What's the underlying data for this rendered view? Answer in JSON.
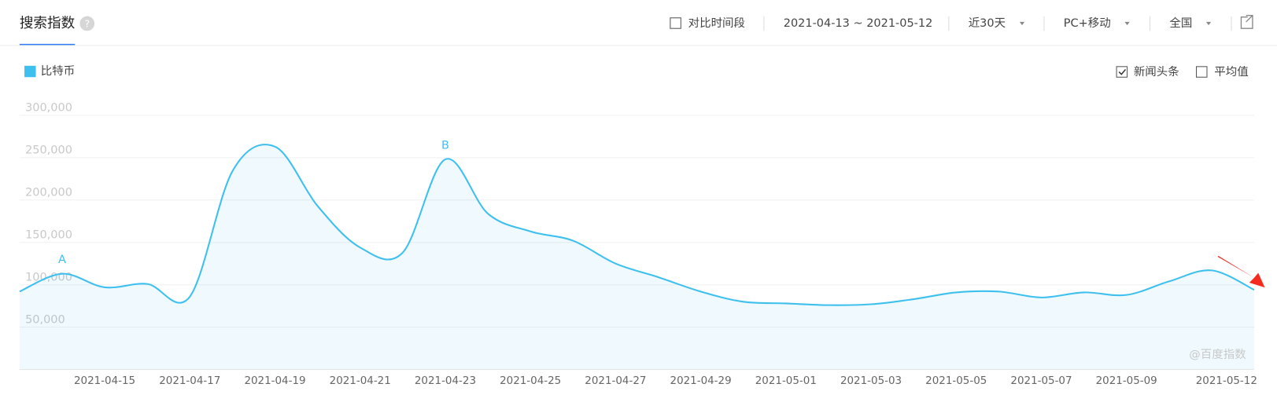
{
  "ui": {
    "title": "搜索指数",
    "help": "?",
    "compare": "对比时间段",
    "date_range": "2021-04-13 ~ 2021-05-12",
    "period": "近30天",
    "device": "PC+移动",
    "region": "全国",
    "options": [
      {
        "label": "新闻头条",
        "checked": true
      },
      {
        "label": "平均值",
        "checked": false
      }
    ],
    "watermark": "@百度指数"
  },
  "chart_data": {
    "type": "line",
    "categories": [
      null,
      null,
      "2021-04-15",
      null,
      "2021-04-17",
      null,
      "2021-04-19",
      null,
      "2021-04-21",
      null,
      "2021-04-23",
      null,
      "2021-04-25",
      null,
      "2021-04-27",
      null,
      "2021-04-29",
      null,
      "2021-05-01",
      null,
      "2021-05-03",
      null,
      "2021-05-05",
      null,
      "2021-05-07",
      null,
      "2021-05-09",
      null,
      null,
      "2021-05-12"
    ],
    "series": [
      {
        "name": "比特币",
        "color": "#3ec0ef",
        "values": [
          92000,
          113000,
          97000,
          101000,
          86000,
          234000,
          263000,
          193000,
          144000,
          138000,
          248000,
          184000,
          163000,
          152000,
          125000,
          109000,
          92000,
          80000,
          78000,
          76000,
          77000,
          83000,
          91000,
          92000,
          85000,
          91000,
          88000,
          104000,
          117000,
          94000
        ],
        "point_labels": [
          null,
          "A",
          null,
          null,
          null,
          null,
          null,
          null,
          null,
          null,
          "B",
          null,
          null,
          null,
          null,
          null,
          null,
          null,
          null,
          null,
          null,
          null,
          null,
          null,
          null,
          null,
          null,
          null,
          null,
          null
        ]
      }
    ],
    "ylim": [
      0,
      300000
    ],
    "yticks": [
      {
        "value": 50000,
        "label": "50,000"
      },
      {
        "value": 100000,
        "label": "100,000"
      },
      {
        "value": 150000,
        "label": "150,000"
      },
      {
        "value": 200000,
        "label": "200,000"
      },
      {
        "value": 250000,
        "label": "250,000"
      },
      {
        "value": 300000,
        "label": "300,000"
      }
    ],
    "grid": true
  }
}
